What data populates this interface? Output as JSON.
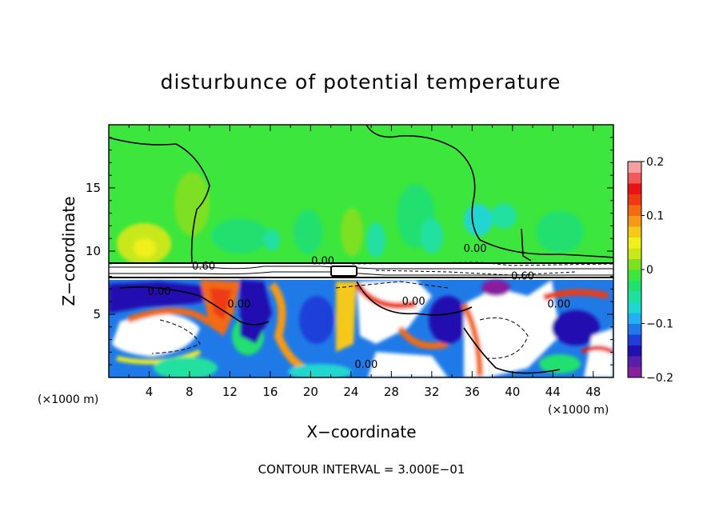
{
  "chart_data": {
    "type": "heatmap",
    "title": "disturbunce of potential temperature",
    "xlabel": "X−coordinate",
    "ylabel": "Z−coordinate",
    "x_unit": "(×1000 m)",
    "y_unit": "(×1000 m)",
    "xlim": [
      0,
      50
    ],
    "ylim": [
      0,
      20
    ],
    "x_ticks": [
      4,
      8,
      12,
      16,
      20,
      24,
      28,
      32,
      36,
      40,
      44,
      48
    ],
    "y_ticks": [
      5,
      10,
      15
    ],
    "colorbar": {
      "range": [
        -0.2,
        0.2
      ],
      "ticks": [
        {
          "value": 0.2,
          "label": "0.2"
        },
        {
          "value": 0.1,
          "label": "0.1"
        },
        {
          "value": 0,
          "label": "0"
        },
        {
          "value": -0.1,
          "label": "−0.1"
        },
        {
          "value": -0.2,
          "label": "−0.2"
        }
      ],
      "colors": [
        "#8a1f9e",
        "#5a1ea8",
        "#2410b0",
        "#1f3fd8",
        "#1f7ae8",
        "#23b0f0",
        "#22d6d0",
        "#20e0a0",
        "#22e070",
        "#3ce63c",
        "#7ee022",
        "#c8e81c",
        "#f0f01c",
        "#f5c81a",
        "#f59a18",
        "#f26a14",
        "#ee3a12",
        "#e81414",
        "#f05a5a",
        "#f5a0a0"
      ]
    },
    "contour_labels": [
      {
        "x": 9.4,
        "z": 8.8,
        "text": "0.60"
      },
      {
        "x": 21.2,
        "z": 9.2,
        "text": "0.00"
      },
      {
        "x": 5.0,
        "z": 6.8,
        "text": "0.00"
      },
      {
        "x": 12.9,
        "z": 5.8,
        "text": "0.00"
      },
      {
        "x": 30.2,
        "z": 6.0,
        "text": "0.00"
      },
      {
        "x": 36.3,
        "z": 10.2,
        "text": "0.00"
      },
      {
        "x": 41.0,
        "z": 8.0,
        "text": "0.60"
      },
      {
        "x": 44.6,
        "z": 5.8,
        "text": "0.00"
      },
      {
        "x": 25.5,
        "z": 1.0,
        "text": "0.00"
      }
    ],
    "contour_interval": "CONTOUR INTERVAL = 3.000E−01"
  }
}
